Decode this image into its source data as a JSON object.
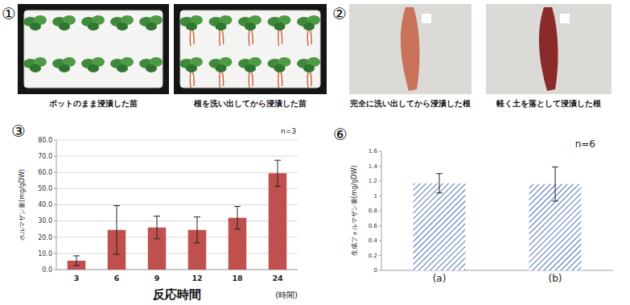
{
  "panels": [
    {
      "label": "①",
      "photos": [
        {
          "caption": "ポットのまま浸漬した苗"
        },
        {
          "caption": "根を洗い出してから浸漬した苗"
        }
      ]
    },
    {
      "label": "②",
      "photos": [
        {
          "caption": "完全に洗い出してから浸漬した根"
        },
        {
          "caption": "軽く土を落として浸漬した根"
        }
      ]
    }
  ],
  "chart_data": [
    {
      "label": "③",
      "type": "bar",
      "y_label": "ホルマザン量(mg/gDW)",
      "x_label": "反応時間",
      "x_unit": "(時間)",
      "annotation": "n=3",
      "categories": [
        "3",
        "6",
        "9",
        "12",
        "18",
        "24"
      ],
      "values": [
        5.5,
        24.5,
        26,
        24.5,
        32,
        59.5
      ],
      "errors": [
        3,
        15,
        7,
        8,
        7,
        8
      ],
      "color": "#c0504d",
      "ylim": [
        0,
        80
      ],
      "yticks": [
        {
          "value": 0,
          "label": "0.0"
        },
        {
          "value": 10,
          "label": "10.0"
        },
        {
          "value": 20,
          "label": "20.0"
        },
        {
          "value": 30,
          "label": "30.0"
        },
        {
          "value": 40,
          "label": "40.0"
        },
        {
          "value": 50,
          "label": "50.0"
        },
        {
          "value": 60,
          "label": "60.0"
        },
        {
          "value": 70,
          "label": "70.0"
        },
        {
          "value": 80,
          "label": "80.0"
        }
      ],
      "grid": true
    },
    {
      "label": "⑥",
      "type": "bar",
      "y_label": "生成フォルマザン量(mg/gDW)",
      "annotation": "n=6",
      "categories": [
        "(a)",
        "(b)"
      ],
      "values": [
        1.17,
        1.16
      ],
      "errors": [
        0.13,
        0.23
      ],
      "color": "#4a6fb5",
      "ylim": [
        0,
        1.6
      ],
      "yticks": [
        0,
        0.2,
        0.4,
        0.6,
        0.8,
        1,
        1.2,
        1.4,
        1.6
      ],
      "grid": false
    }
  ]
}
